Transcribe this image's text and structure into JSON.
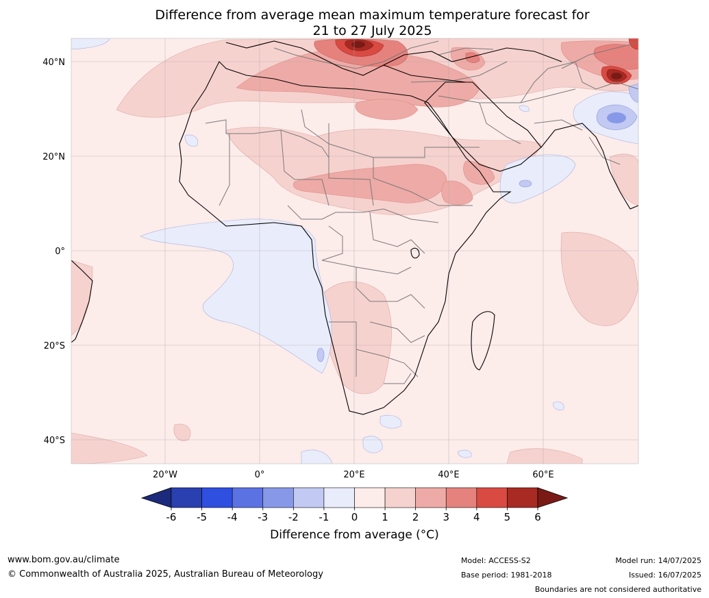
{
  "title_line1": "Difference from average mean maximum temperature forecast for",
  "title_line2": "21 to 27 July 2025",
  "lat_labels": [
    "40°N",
    "20°N",
    "0°",
    "20°S",
    "40°S"
  ],
  "lon_labels": [
    "20°W",
    "0°",
    "20°E",
    "40°E",
    "60°E"
  ],
  "colorbar": {
    "ticks": [
      "-6",
      "-5",
      "-4",
      "-3",
      "-2",
      "-1",
      "0",
      "1",
      "2",
      "3",
      "4",
      "5",
      "6"
    ],
    "colors": [
      "#1b2a7a",
      "#2a3fb0",
      "#2f4fe0",
      "#5b72e3",
      "#8798e8",
      "#c2c9f2",
      "#e9ecfb",
      "#fcecea",
      "#f6d2cf",
      "#eeaaa6",
      "#e6827d",
      "#d94a42",
      "#a82a22",
      "#7a1a16"
    ],
    "label": "Difference from average (°C)"
  },
  "footer": {
    "website": "www.bom.gov.au/climate",
    "copyright": "© Commonwealth of Australia 2025, Australian Bureau of Meteorology",
    "model": "Model: ACCESS-S2",
    "base_period": "Base period: 1981-2018",
    "model_run": "Model run: 14/07/2025",
    "issued": "Issued: 16/07/2025",
    "boundaries": "Boundaries are not considered authoritative"
  }
}
